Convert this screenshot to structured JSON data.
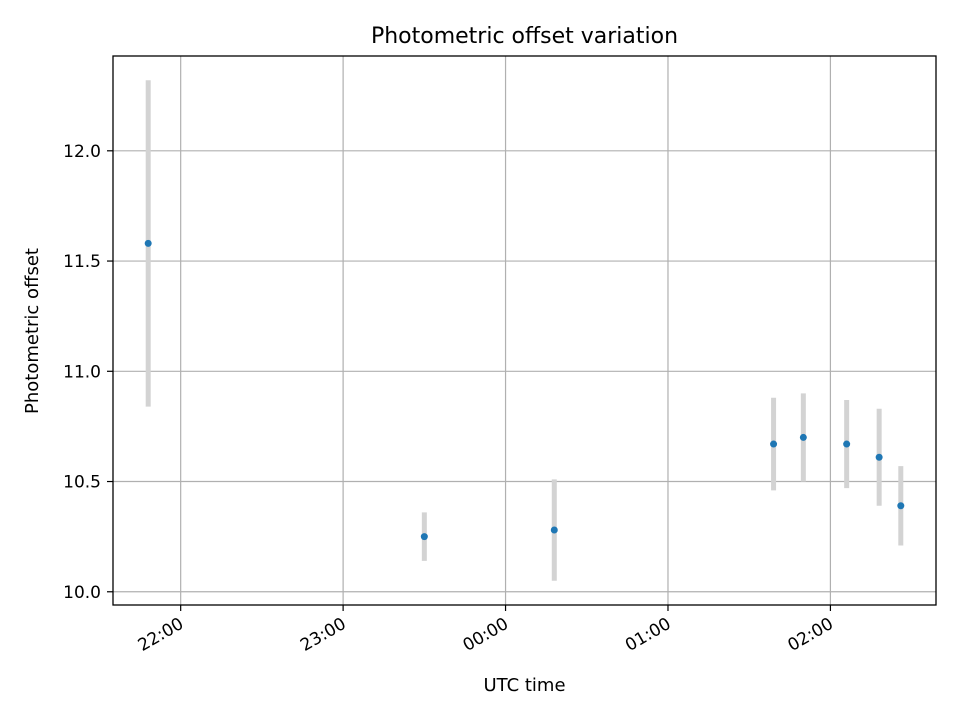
{
  "chart_data": {
    "type": "scatter",
    "title": "Photometric offset variation",
    "xlabel": "UTC time",
    "ylabel": "Photometric offset",
    "grid": true,
    "xticks": [
      "22:00",
      "23:00",
      "00:00",
      "01:00",
      "02:00"
    ],
    "yticks": [
      "10.0",
      "10.5",
      "11.0",
      "11.5",
      "12.0"
    ],
    "points": [
      {
        "x": "21:48",
        "y": 11.58,
        "err": 0.74
      },
      {
        "x": "23:30",
        "y": 10.25,
        "err": 0.11
      },
      {
        "x": "00:18",
        "y": 10.28,
        "err": 0.23
      },
      {
        "x": "01:39",
        "y": 10.67,
        "err": 0.21
      },
      {
        "x": "01:50",
        "y": 10.7,
        "err": 0.2
      },
      {
        "x": "02:06",
        "y": 10.67,
        "err": 0.2
      },
      {
        "x": "02:18",
        "y": 10.61,
        "err": 0.22
      },
      {
        "x": "02:26",
        "y": 10.39,
        "err": 0.18
      }
    ],
    "colors": {
      "point": "#1f77b4",
      "errorbar": "#d3d3d3",
      "grid": "#b0b0b0"
    }
  }
}
